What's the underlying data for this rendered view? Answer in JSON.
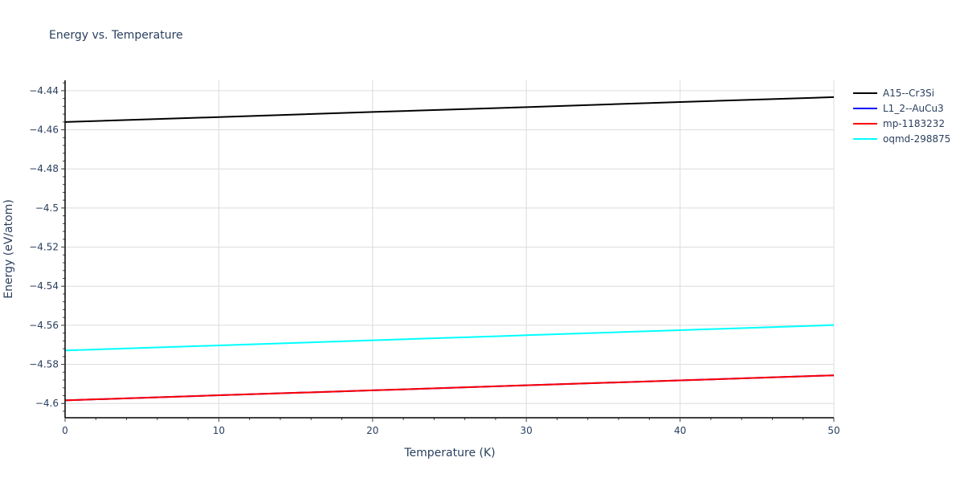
{
  "chart": {
    "title": "Energy vs. Temperature",
    "xlabel": "Temperature (K)",
    "ylabel": "Energy (eV/atom)"
  },
  "legend": [
    {
      "name": "A15--Cr3Si",
      "color": "#000000"
    },
    {
      "name": "L1_2--AuCu3",
      "color": "#0000ff"
    },
    {
      "name": "mp-1183232",
      "color": "#ff0000"
    },
    {
      "name": "oqmd-298875",
      "color": "#00ffff"
    }
  ],
  "chart_data": {
    "type": "line",
    "title": "Energy vs. Temperature",
    "xlabel": "Temperature (K)",
    "ylabel": "Energy (eV/atom)",
    "xlim": [
      0,
      50
    ],
    "ylim": [
      -4.6073,
      -4.4347
    ],
    "x_ticks": [
      0,
      10,
      20,
      30,
      40,
      50
    ],
    "y_ticks": [
      -4.44,
      -4.46,
      -4.48,
      -4.5,
      -4.52,
      -4.54,
      -4.56,
      -4.58,
      -4.6
    ],
    "y_tick_labels": [
      "−4.44",
      "−4.46",
      "−4.48",
      "−4.5",
      "−4.52",
      "−4.54",
      "−4.56",
      "−4.58",
      "−4.6"
    ],
    "grid": true,
    "legend_position": "right",
    "series": [
      {
        "name": "A15--Cr3Si",
        "color": "#000000",
        "x": [
          0,
          10,
          20,
          30,
          40,
          50
        ],
        "y": [
          -4.456,
          -4.4535,
          -4.4509,
          -4.4484,
          -4.4458,
          -4.4433
        ]
      },
      {
        "name": "L1_2--AuCu3",
        "color": "#0000ff",
        "x": [
          0,
          10,
          20,
          30,
          40,
          50
        ],
        "y": [
          -4.5984,
          -4.5958,
          -4.5933,
          -4.5907,
          -4.5882,
          -4.5856
        ]
      },
      {
        "name": "mp-1183232",
        "color": "#ff0000",
        "x": [
          0,
          10,
          20,
          30,
          40,
          50
        ],
        "y": [
          -4.5984,
          -4.5958,
          -4.5933,
          -4.5907,
          -4.5882,
          -4.5856
        ]
      },
      {
        "name": "oqmd-298875",
        "color": "#00ffff",
        "x": [
          0,
          10,
          20,
          30,
          40,
          50
        ],
        "y": [
          -4.5729,
          -4.5703,
          -4.5677,
          -4.5651,
          -4.5625,
          -4.5599
        ]
      }
    ]
  }
}
